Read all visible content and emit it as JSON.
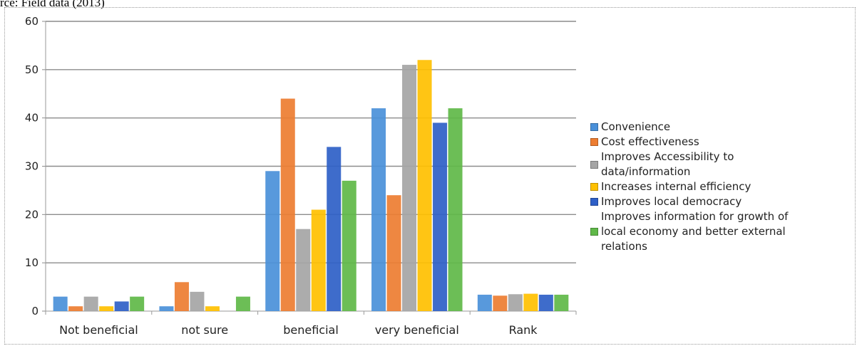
{
  "caption": "rce: Field data (2013)",
  "chart_data": {
    "type": "bar",
    "categories": [
      "Not beneficial",
      "not sure",
      "beneficial",
      "very beneficial",
      "Rank"
    ],
    "ylim": [
      0,
      60
    ],
    "yticks": [
      0,
      10,
      20,
      30,
      40,
      50,
      60
    ],
    "grid": true,
    "legend_position": "right",
    "series": [
      {
        "name": "Convenience",
        "color": "#4a90d9",
        "values": [
          3,
          1,
          29,
          42,
          3.4
        ]
      },
      {
        "name": "Cost effectiveness",
        "color": "#ed7d31",
        "values": [
          1,
          6,
          44,
          24,
          3.2
        ]
      },
      {
        "name": "Improves Accessibility to data/information",
        "color": "#a5a5a5",
        "values": [
          3,
          4,
          17,
          51,
          3.5
        ]
      },
      {
        "name": "Increases internal efficiency",
        "color": "#ffc000",
        "values": [
          1,
          1,
          21,
          52,
          3.6
        ]
      },
      {
        "name": "Improves local democracy",
        "color": "#2e5fc7",
        "values": [
          2,
          0,
          34,
          39,
          3.4
        ]
      },
      {
        "name": "Improves information for growth of local economy and better external relations",
        "color": "#5fb848",
        "values": [
          3,
          3,
          27,
          42,
          3.4
        ]
      }
    ]
  }
}
